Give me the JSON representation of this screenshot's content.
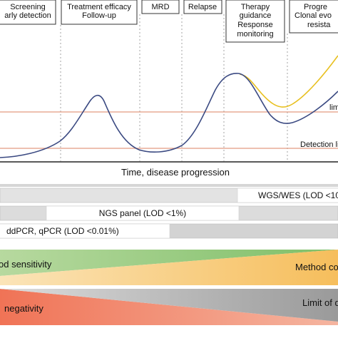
{
  "phases": [
    {
      "lines": [
        "Screening",
        "arly detection"
      ]
    },
    {
      "lines": [
        "Treatment efficacy",
        "Follow-up"
      ]
    },
    {
      "lines": [
        "MRD"
      ]
    },
    {
      "lines": [
        "Relapse"
      ]
    },
    {
      "lines": [
        "Therapy",
        "guidance",
        "Response",
        "monitoring"
      ]
    },
    {
      "lines": [
        "Progre",
        "Clonal evo",
        "resista"
      ]
    }
  ],
  "curve": {
    "threshold_label": "lim",
    "detection_label": "Detection li",
    "xaxis_label": "Time, disease progression"
  },
  "methods": [
    {
      "label": "WGS/WES (LOD <10"
    },
    {
      "label": "NGS panel (LOD <1%)"
    },
    {
      "label": "ddPCR, qPCR (LOD <0.01%)"
    }
  ],
  "tradeoffs": {
    "sensitivity": "od sensitivity",
    "coverage": "Method co",
    "negativity": "negativity",
    "limit": "Limit of d"
  },
  "colors": {
    "curve_main": "#3b4a82",
    "curve_alt": "#e8c020",
    "threshold_line": "#e3997f",
    "green": "#8fc57a",
    "orange": "#f5c26b",
    "red": "#f07a5e",
    "grey": "#a6a6a6"
  }
}
